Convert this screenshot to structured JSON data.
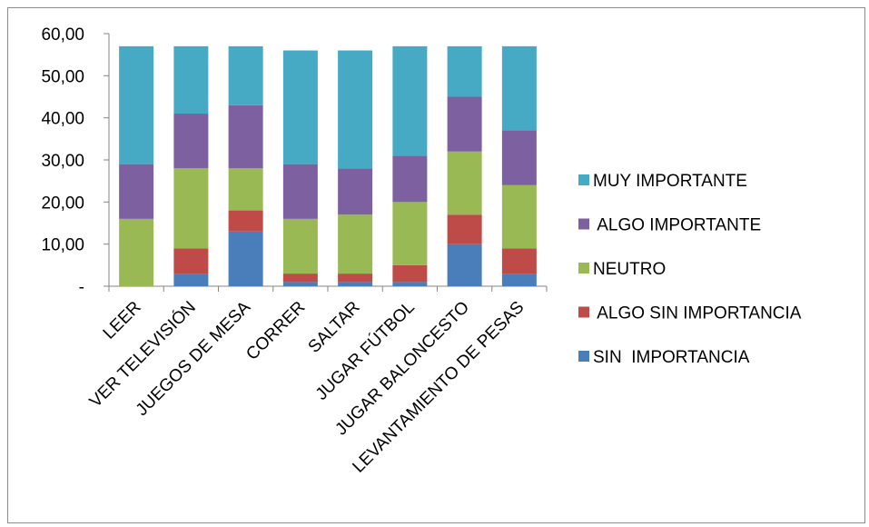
{
  "chart_data": {
    "type": "bar",
    "stacked": true,
    "categories": [
      "LEER",
      "VER TELEVISIÓN",
      "JUEGOS DE MESA",
      "CORRER",
      "SALTAR",
      "JUGAR FÚTBOL",
      "JUGAR BALONCESTO",
      "LEVANTAMIENTO DE PESAS"
    ],
    "series": [
      {
        "name": "SIN  IMPORTANCIA",
        "color": "#4a7ebb",
        "values": [
          0,
          3,
          13,
          1,
          1,
          1,
          10,
          3
        ]
      },
      {
        "name": " ALGO SIN IMPORTANCIA",
        "color": "#be4b48",
        "values": [
          0,
          6,
          5,
          2,
          2,
          4,
          7,
          6
        ]
      },
      {
        "name": "NEUTRO",
        "color": "#98b954",
        "values": [
          16,
          19,
          10,
          13,
          14,
          15,
          15,
          15
        ]
      },
      {
        "name": " ALGO IMPORTANTE",
        "color": "#7d60a0",
        "values": [
          13,
          13,
          15,
          13,
          11,
          11,
          13,
          13
        ]
      },
      {
        "name": "MUY IMPORTANTE",
        "color": "#46aac5",
        "values": [
          28,
          16,
          14,
          27,
          28,
          26,
          12,
          20
        ]
      }
    ],
    "legend_order": [
      "MUY IMPORTANTE",
      " ALGO IMPORTANTE",
      "NEUTRO",
      " ALGO SIN IMPORTANCIA",
      "SIN  IMPORTANCIA"
    ],
    "yticks": [
      0,
      10,
      20,
      30,
      40,
      50,
      60
    ],
    "ytick_labels": [
      "-",
      "10,00",
      "20,00",
      "30,00",
      "40,00",
      "50,00",
      "60,00"
    ],
    "ylim": [
      0,
      60
    ],
    "legend_position": "right",
    "grid": false
  }
}
